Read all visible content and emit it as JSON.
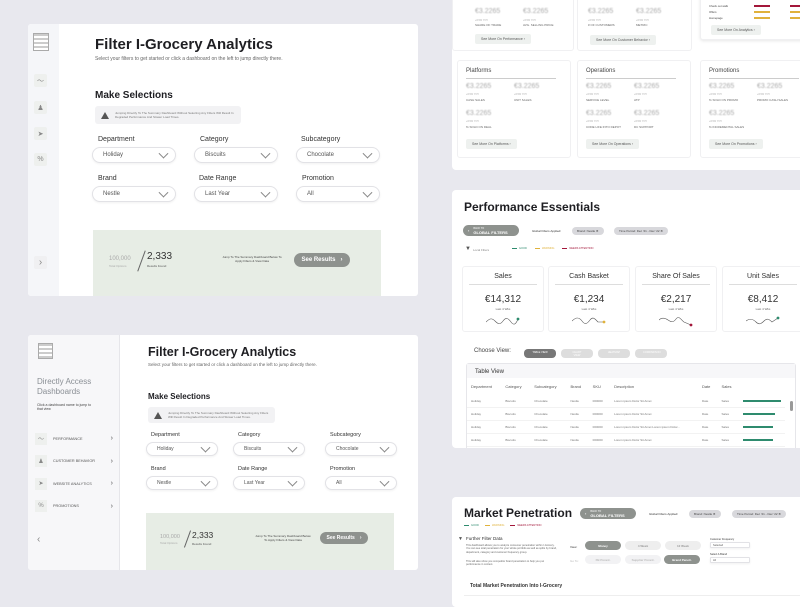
{
  "filter_page": {
    "title": "Filter I-Grocery Analytics",
    "subtitle": "Select your filters to get started or click a dashboard on the left to jump directly there.",
    "section": "Make Selections",
    "warning": "Jumping Directly To The Summary Dashboard Without Selecting Any Filters Will Result In Degraded Performance And Slower Load Times.",
    "filters": [
      {
        "label": "Department",
        "value": "Holiday"
      },
      {
        "label": "Category",
        "value": "Biscuits"
      },
      {
        "label": "Subcategory",
        "value": "Chocolate"
      },
      {
        "label": "Brand",
        "value": "Nestle"
      },
      {
        "label": "Date Range",
        "value": "Last Year"
      },
      {
        "label": "Promotion",
        "value": "All"
      }
    ],
    "total": "100,000",
    "total_label": "Total Options",
    "results": "2,333",
    "results_label": "Results Found",
    "jump_text": "Jump To The Summary Dashboard Below To Apply Filters & View Data",
    "button": "See Results"
  },
  "sidebar": {
    "heading": "Directly Access Dashboards",
    "hint": "Click a dashboard name to jump to that view",
    "items": [
      {
        "label": "PERFORMANCE",
        "icon": "trend-icon"
      },
      {
        "label": "CUSTOMER BEHAVIOR",
        "icon": "user-icon"
      },
      {
        "label": "WEBSITE ANALYTICS",
        "icon": "cursor-icon"
      },
      {
        "label": "PROMOTIONS",
        "icon": "percent-icon"
      }
    ]
  },
  "overview": {
    "top": [
      {
        "metrics": [
          {
            "v": "€3.2265",
            "d": "+6.5% YOY",
            "l": "SHARE OF TRADE"
          },
          {
            "v": "€3.2265",
            "d": "+6.5% YOY",
            "l": "AVG. SELLING PRICE"
          }
        ],
        "button": "See More On Performance"
      },
      {
        "metrics": [
          {
            "v": "€3.2265",
            "d": "+6.5% YOY",
            "l": "# OF CUSTOMERS"
          },
          {
            "v": "€3.2265",
            "d": "+6.5% YOY",
            "l": "METRIC"
          }
        ],
        "button": "See More On Customer Behavior"
      }
    ],
    "analytics": {
      "rows": [
        "Check out walk",
        "Offers",
        "Homepage"
      ],
      "button": "See More On Analytics"
    },
    "cards": [
      {
        "title": "Platforms",
        "metrics": [
          {
            "v": "€3.2265",
            "d": "+6.5% YOY",
            "l": "CASH SALES"
          },
          {
            "v": "€3.2265",
            "d": "+6.5% YOY",
            "l": "UNIT SALES"
          },
          {
            "v": "€3.2265",
            "d": "+6.5% YOY",
            "l": "% SOLD ON DEAL"
          }
        ],
        "button": "See More On Platforms"
      },
      {
        "title": "Operations",
        "metrics": [
          {
            "v": "€3.2265",
            "d": "+6.5% YOY",
            "l": "SERVICE LEVEL"
          },
          {
            "v": "€3.2265",
            "d": "+6.5% YOY",
            "l": "ATP"
          },
          {
            "v": "€3.2265",
            "d": "+6.5% YOY",
            "l": "CODE LIFE INTO DEPOT"
          },
          {
            "v": "€3.2265",
            "d": "+6.5% YOY",
            "l": "DC SUPPORT"
          }
        ],
        "button": "See More On Operations"
      },
      {
        "title": "Promotions",
        "metrics": [
          {
            "v": "€3.2265",
            "d": "+6.5% YOY",
            "l": "% SOLD ON PROMO"
          },
          {
            "v": "€3.2265",
            "d": "+6.5% YOY",
            "l": "PROMO CASH SALES"
          },
          {
            "v": "€3.2265",
            "d": "+6.5% YOY",
            "l": "% INCREMENTAL SALES"
          }
        ],
        "button": "See More On Promotions"
      }
    ]
  },
  "performance": {
    "title": "Performance Essentials",
    "back_small": "BACK TO",
    "back": "GLOBAL FILTERS",
    "applied": "Global Filters Applied:",
    "chips": [
      "Brand: Nestle",
      "Time Period: Dec '21 - Dec '22"
    ],
    "local": "Local Filters",
    "legend": [
      {
        "l": "GOOD",
        "c": "#2e8b6e"
      },
      {
        "l": "WARNING",
        "c": "#e0b23c"
      },
      {
        "l": "NEEDS ATTENTION",
        "c": "#a3173a"
      }
    ],
    "kpis": [
      {
        "title": "Sales",
        "value": "€14,312",
        "sub": "Last 4 Wks",
        "status": "#2e8b6e"
      },
      {
        "title": "Cash Basket",
        "value": "€1,234",
        "sub": "Last 4 Wks",
        "status": "#e0b23c"
      },
      {
        "title": "Share Of Sales",
        "value": "€2,217",
        "sub": "Last 4 Wks",
        "status": "#a3173a"
      },
      {
        "title": "Unit Sales",
        "value": "€8,412",
        "sub": "Last 4 Wks",
        "status": "#2e8b6e"
      }
    ],
    "choose": "Choose View:",
    "views": [
      "TABLE VIEW",
      "CHART VIEW",
      "HEATMAP",
      "COMPARISON"
    ],
    "table_title": "Table View",
    "columns": [
      "Department",
      "Category",
      "Subcategory",
      "Brand",
      "SKU",
      "Description",
      "Date",
      "Sales"
    ],
    "rows": [
      [
        "Holiday",
        "Biscuits",
        "Chocolate",
        "Nestle",
        "000000",
        "Lorem ipsum Dolor Sit Amet",
        "Date",
        "Sales",
        0.95
      ],
      [
        "Holiday",
        "Biscuits",
        "Chocolate",
        "Nestle",
        "000000",
        "Lorem ipsum Dolor Sit Amet",
        "Date",
        "Sales",
        0.8
      ],
      [
        "Holiday",
        "Biscuits",
        "Chocolate",
        "Nestle",
        "000000",
        "Lorem ipsum Dolor Sit Amet Lorem ipsum Dolor...",
        "Date",
        "Sales",
        0.75
      ],
      [
        "Holiday",
        "Biscuits",
        "Chocolate",
        "Nestle",
        "000000",
        "Lorem ipsum Dolor Sit Amet",
        "Date",
        "Sales",
        0.75
      ],
      [
        "Holiday",
        "Biscuits",
        "Chocolate",
        "Nestle",
        "000000",
        "Lorem ipsum Dolor Sit Amet",
        "Date",
        "Sales",
        0.65
      ]
    ]
  },
  "market": {
    "title": "Market Penetration",
    "back_small": "BACK TO",
    "back": "GLOBAL FILTERS",
    "applied": "Global Filters Applied:",
    "chips": [
      "Brand: Nestle",
      "Time Period: Dec '21 - Dec '22"
    ],
    "filter_title": "Further Filter Data",
    "desc": "This dashboard allows you to analyze consumer penetration within I-Grocery. You can see total penetration for your whole portfolio as well as splits by brand, department, category and customer frequency group.",
    "desc2": "This will also show you competitor brand penetration to help you put performance in context.",
    "view_label": "View:",
    "views": [
      "Money",
      "4 Week",
      "12 Week"
    ],
    "goto_label": "Go To:",
    "goto": [
      "FB Penetr.",
      "Supplier Penetr.",
      "Brand Penetr."
    ],
    "freq_label": "Customer Frequency",
    "freq_value": "Selected",
    "brand_label": "Select A Brand",
    "brand_value": "All",
    "section": "Total Market Penetration Into I-Grocery"
  }
}
